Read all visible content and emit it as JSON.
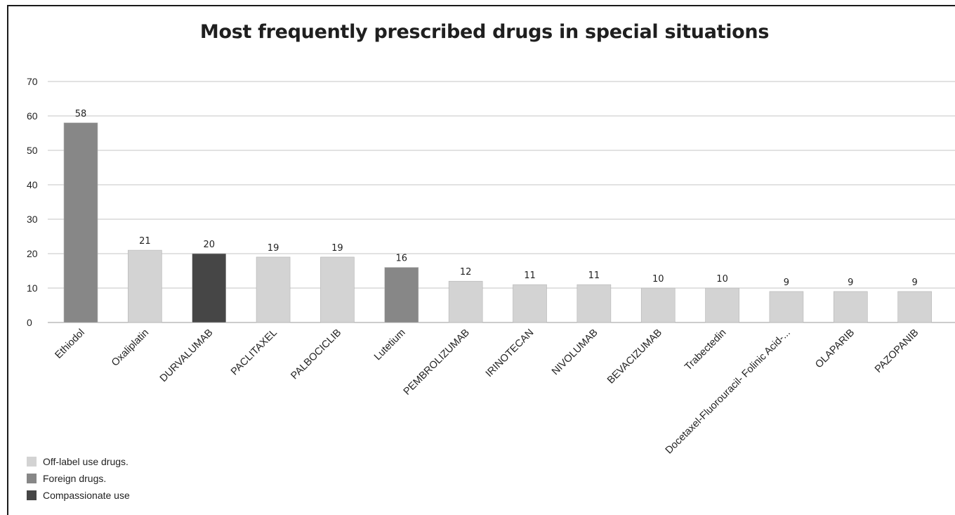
{
  "chart_data": {
    "type": "bar",
    "title": "Most frequently prescribed drugs in special situations",
    "xlabel": "",
    "ylabel": "",
    "ylim": [
      0,
      70
    ],
    "yticks": [
      0,
      10,
      20,
      30,
      40,
      50,
      60,
      70
    ],
    "grid": true,
    "legend_position": "bottom-left",
    "categories": [
      "Ethiodol",
      "Oxaliplatin",
      "DURVALUMAB",
      "PACLITAXEL",
      "PALBOCICLIB",
      "Lutetium",
      "PEMBROLIZUMAB",
      "IRINOTECAN",
      "NIVOLUMAB",
      "BEVACIZUMAB",
      "Trabectedin",
      "Docetaxel-Fluorouracil- Folinic Acid-...",
      "OLAPARIB",
      "PAZOPANIB"
    ],
    "values": [
      58,
      21,
      20,
      19,
      19,
      16,
      12,
      11,
      11,
      10,
      10,
      9,
      9,
      9
    ],
    "groups": [
      "Foreign drugs.",
      "Off-label use drugs.",
      "Compassionate use",
      "Off-label use drugs.",
      "Off-label use drugs.",
      "Foreign drugs.",
      "Off-label use drugs.",
      "Off-label use drugs.",
      "Off-label use drugs.",
      "Off-label use drugs.",
      "Off-label use drugs.",
      "Off-label use drugs.",
      "Off-label use drugs.",
      "Off-label use drugs."
    ],
    "legend": [
      {
        "label": "Off-label use drugs.",
        "color": "#d3d3d3"
      },
      {
        "label": "Foreign drugs.",
        "color": "#878787"
      },
      {
        "label": "Compassionate use",
        "color": "#464646"
      }
    ]
  }
}
